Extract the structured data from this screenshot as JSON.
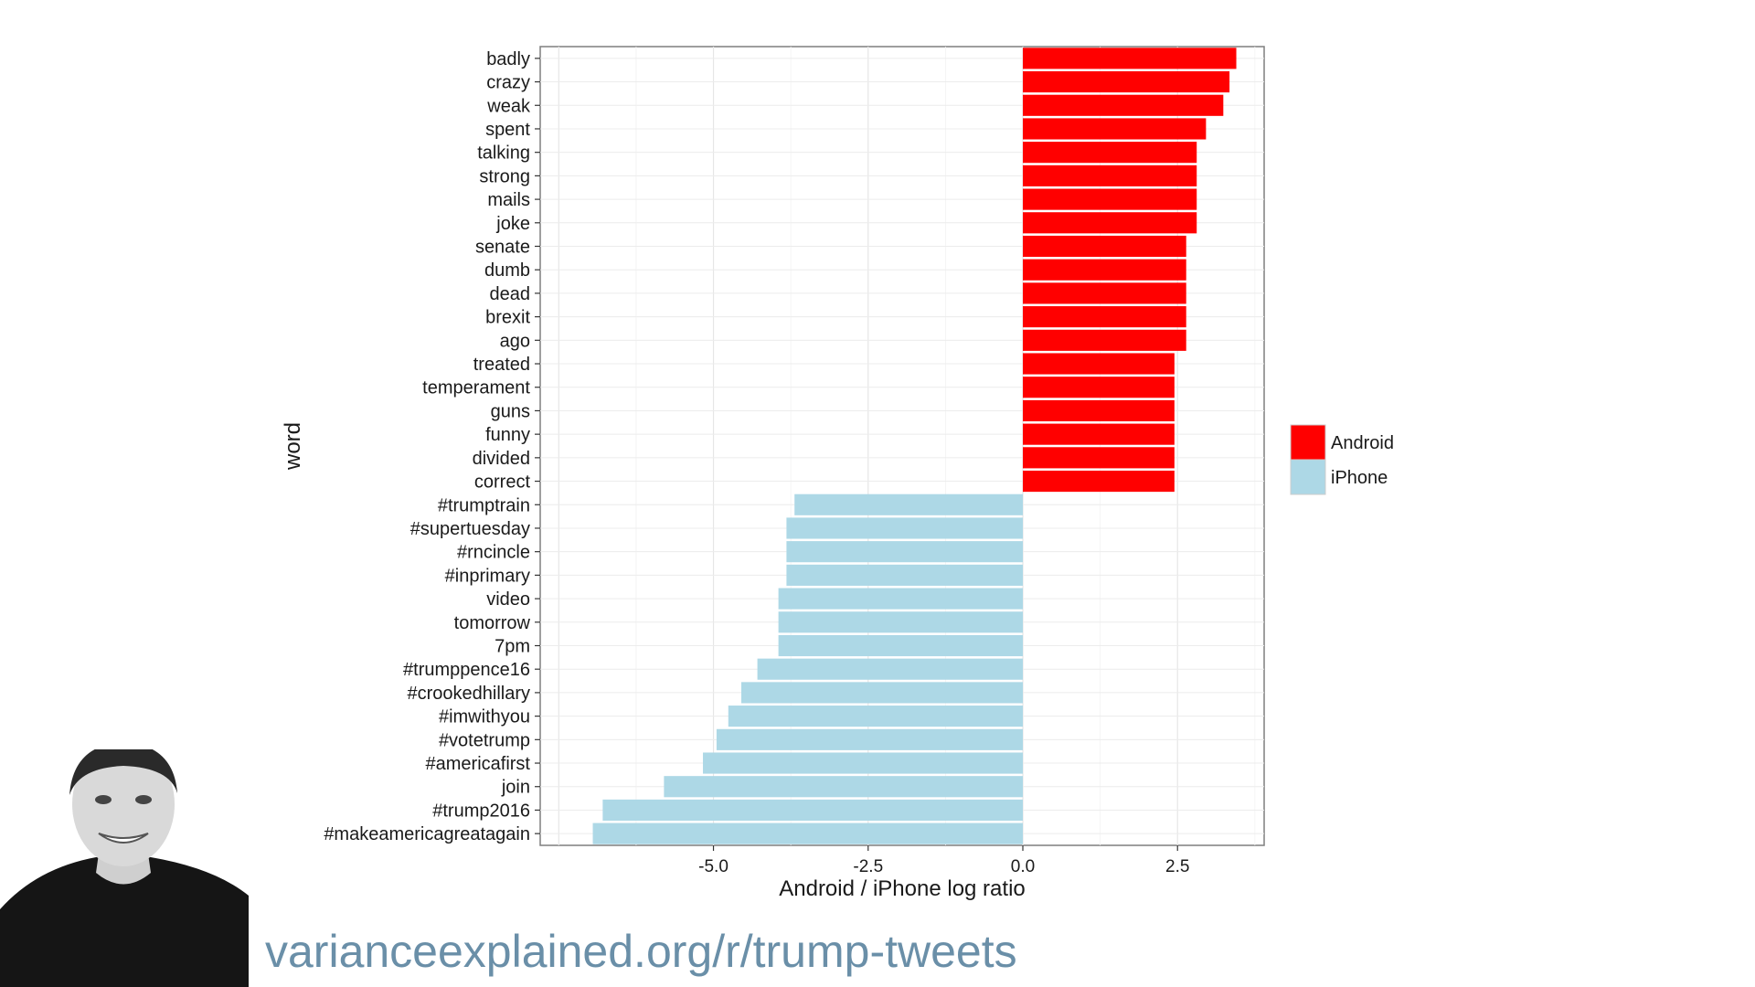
{
  "chart_data": {
    "type": "bar",
    "orientation": "horizontal",
    "xlabel": "Android / iPhone log ratio",
    "ylabel": "word",
    "xlim": [
      -7.8,
      3.9
    ],
    "xticks": [
      "-5.0",
      "-2.5",
      "0.0",
      "2.5"
    ],
    "xtick_values": [
      -5.0,
      -2.5,
      0.0,
      2.5
    ],
    "grid": true,
    "legend_position": "right",
    "legend": [
      {
        "name": "Android",
        "color": "#ff0000"
      },
      {
        "name": "iPhone",
        "color": "#add8e6"
      }
    ],
    "categories": [
      "badly",
      "crazy",
      "weak",
      "spent",
      "talking",
      "strong",
      "mails",
      "joke",
      "senate",
      "dumb",
      "dead",
      "brexit",
      "ago",
      "treated",
      "temperament",
      "guns",
      "funny",
      "divided",
      "correct",
      "#trumptrain",
      "#supertuesday",
      "#rncincle",
      "#inprimary",
      "video",
      "tomorrow",
      "7pm",
      "#trumppence16",
      "#crookedhillary",
      "#imwithyou",
      "#votetrump",
      "#americafirst",
      "join",
      "#trump2016",
      "#makeamericagreatagain"
    ],
    "values": [
      3.45,
      3.34,
      3.24,
      2.96,
      2.81,
      2.81,
      2.81,
      2.81,
      2.64,
      2.64,
      2.64,
      2.64,
      2.64,
      2.45,
      2.45,
      2.45,
      2.45,
      2.45,
      2.45,
      -3.69,
      -3.82,
      -3.82,
      -3.82,
      -3.95,
      -3.95,
      -3.95,
      -4.29,
      -4.55,
      -4.76,
      -4.95,
      -5.17,
      -5.8,
      -6.79,
      -6.95
    ],
    "series": [
      {
        "name": "Android",
        "color": "#ff0000"
      },
      {
        "name": "iPhone",
        "color": "#add8e6"
      }
    ]
  },
  "footer": {
    "url": "varianceexplained.org/r/trump-tweets"
  },
  "photo": {
    "icon": "author-portrait-photo"
  }
}
